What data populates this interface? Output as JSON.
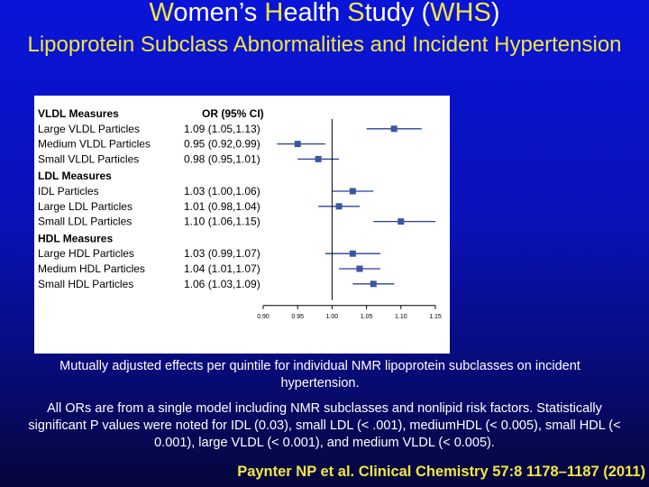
{
  "header": {
    "title_parts": [
      "W",
      "omen’s ",
      "H",
      "ealth ",
      "S",
      "tudy (",
      "WHS",
      ")"
    ],
    "subtitle": "Lipoprotein Subclass Abnormalities and Incident Hypertension"
  },
  "chart_data": {
    "type": "forest",
    "column_header": "OR (95% CI)",
    "x_axis_ticks": [
      "0.90",
      "0.95",
      "1.00",
      "1.05",
      "1.10",
      "1.15"
    ],
    "xlim": [
      0.9,
      1.15
    ],
    "groups": [
      {
        "heading": "VLDL Measures",
        "rows": [
          {
            "label": "Large VLDL Particles",
            "or": 1.09,
            "lo": 1.05,
            "hi": 1.13,
            "text": "1.09 (1.05,1.13)"
          },
          {
            "label": "Medium VLDL Particles",
            "or": 0.95,
            "lo": 0.92,
            "hi": 0.99,
            "text": "0.95 (0.92,0.99)"
          },
          {
            "label": "Small VLDL Particles",
            "or": 0.98,
            "lo": 0.95,
            "hi": 1.01,
            "text": "0.98 (0.95,1.01)"
          }
        ]
      },
      {
        "heading": "LDL Measures",
        "rows": [
          {
            "label": "IDL Particles",
            "or": 1.03,
            "lo": 1.0,
            "hi": 1.06,
            "text": "1.03 (1.00,1.06)"
          },
          {
            "label": "Large LDL Particles",
            "or": 1.01,
            "lo": 0.98,
            "hi": 1.04,
            "text": "1.01 (0.98,1.04)"
          },
          {
            "label": "Small LDL Particles",
            "or": 1.1,
            "lo": 1.06,
            "hi": 1.15,
            "text": "1.10 (1.06,1.15)"
          }
        ]
      },
      {
        "heading": "HDL Measures",
        "rows": [
          {
            "label": "Large HDL Particles",
            "or": 1.03,
            "lo": 0.99,
            "hi": 1.07,
            "text": "1.03 (0.99,1.07)"
          },
          {
            "label": "Medium HDL Particles",
            "or": 1.04,
            "lo": 1.01,
            "hi": 1.07,
            "text": "1.04 (1.01,1.07)"
          },
          {
            "label": "Small HDL Particles",
            "or": 1.06,
            "lo": 1.03,
            "hi": 1.09,
            "text": "1.06 (1.03,1.09)"
          }
        ]
      }
    ],
    "marker_color": "#3a55a5",
    "line_color": "#2a3f96"
  },
  "caption": "Mutually adjusted effects per quintile for individual NMR lipoprotein subclasses on incident hypertension.",
  "note": "All ORs are from a single model including NMR subclasses and nonlipid risk factors. Statistically significant P values were noted for IDL (0.03), small LDL (< .001), mediumHDL (< 0.005), small HDL (< 0.001), large VLDL (< 0.001), and medium VLDL (< 0.005).",
  "citation": "Paynter NP et al. Clinical Chemistry 57:8 1178–1187 (2011)",
  "colors": {
    "title": "#ffffff",
    "accent": "#f2e640"
  }
}
